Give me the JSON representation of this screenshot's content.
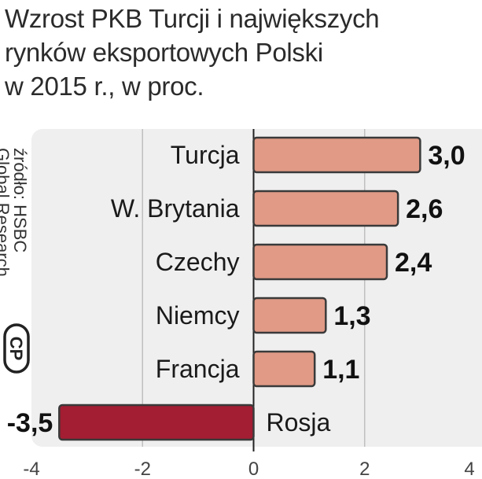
{
  "title_lines": [
    "Wzrost PKB Turcji i największych",
    "rynków eksportowych Polski",
    "w 2015 r., w proc."
  ],
  "source_lines": [
    "źródło: HSBC",
    "Global Research"
  ],
  "logo_text": "CP",
  "colors": {
    "positive": "#e09a86",
    "negative": "#a31d33",
    "panel": "#efefef",
    "axis": "#222222",
    "grid": "#bfbfbf"
  },
  "chart_data": {
    "type": "bar",
    "orientation": "horizontal",
    "title": "Wzrost PKB Turcji i największych rynków eksportowych Polski w 2015 r., w proc.",
    "categories": [
      "Turcja",
      "W. Brytania",
      "Czechy",
      "Niemcy",
      "Francja",
      "Rosja"
    ],
    "values": [
      3.0,
      2.6,
      2.4,
      1.3,
      1.1,
      -3.5
    ],
    "value_labels": [
      "3,0",
      "2,6",
      "2,4",
      "1,3",
      "1,1",
      "-3,5"
    ],
    "xlim": [
      -4,
      4
    ],
    "xticks": [
      -4,
      -2,
      0,
      2,
      4
    ],
    "grid": true
  }
}
